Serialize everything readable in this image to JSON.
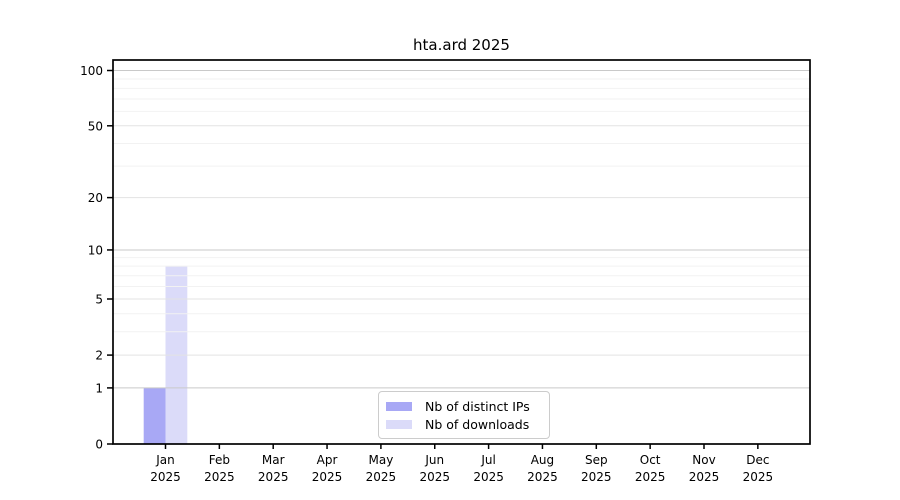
{
  "chart_data": {
    "type": "bar",
    "title": "hta.ard 2025",
    "year_label": "2025",
    "categories": [
      "Jan",
      "Feb",
      "Mar",
      "Apr",
      "May",
      "Jun",
      "Jul",
      "Aug",
      "Sep",
      "Oct",
      "Nov",
      "Dec"
    ],
    "series": [
      {
        "name": "Nb of distinct IPs",
        "color": "#a8a8f5",
        "values": [
          1,
          0,
          0,
          0,
          0,
          0,
          0,
          0,
          0,
          0,
          0,
          0
        ]
      },
      {
        "name": "Nb of downloads",
        "color": "#dbdbf9",
        "values": [
          8,
          0,
          0,
          0,
          0,
          0,
          0,
          0,
          0,
          0,
          0,
          0
        ]
      }
    ],
    "yscale": "log1p",
    "ylim": [
      0,
      114
    ],
    "yticks": [
      0,
      1,
      2,
      5,
      10,
      20,
      50,
      100
    ],
    "y_decade_grid": [
      1,
      10,
      100
    ],
    "y_mid_grid": [
      2,
      5,
      20,
      50
    ],
    "y_minor_grid": [
      3,
      4,
      6,
      7,
      8,
      9,
      30,
      40,
      60,
      70,
      80,
      90
    ],
    "grid": "horizontal",
    "legend_position": "bottom-center",
    "colors": {
      "grid_decade": "#c9c9c9",
      "grid_mid": "#e3e3e3",
      "grid_minor": "#f2f2f2",
      "axis": "#000000",
      "text": "#000000"
    }
  }
}
